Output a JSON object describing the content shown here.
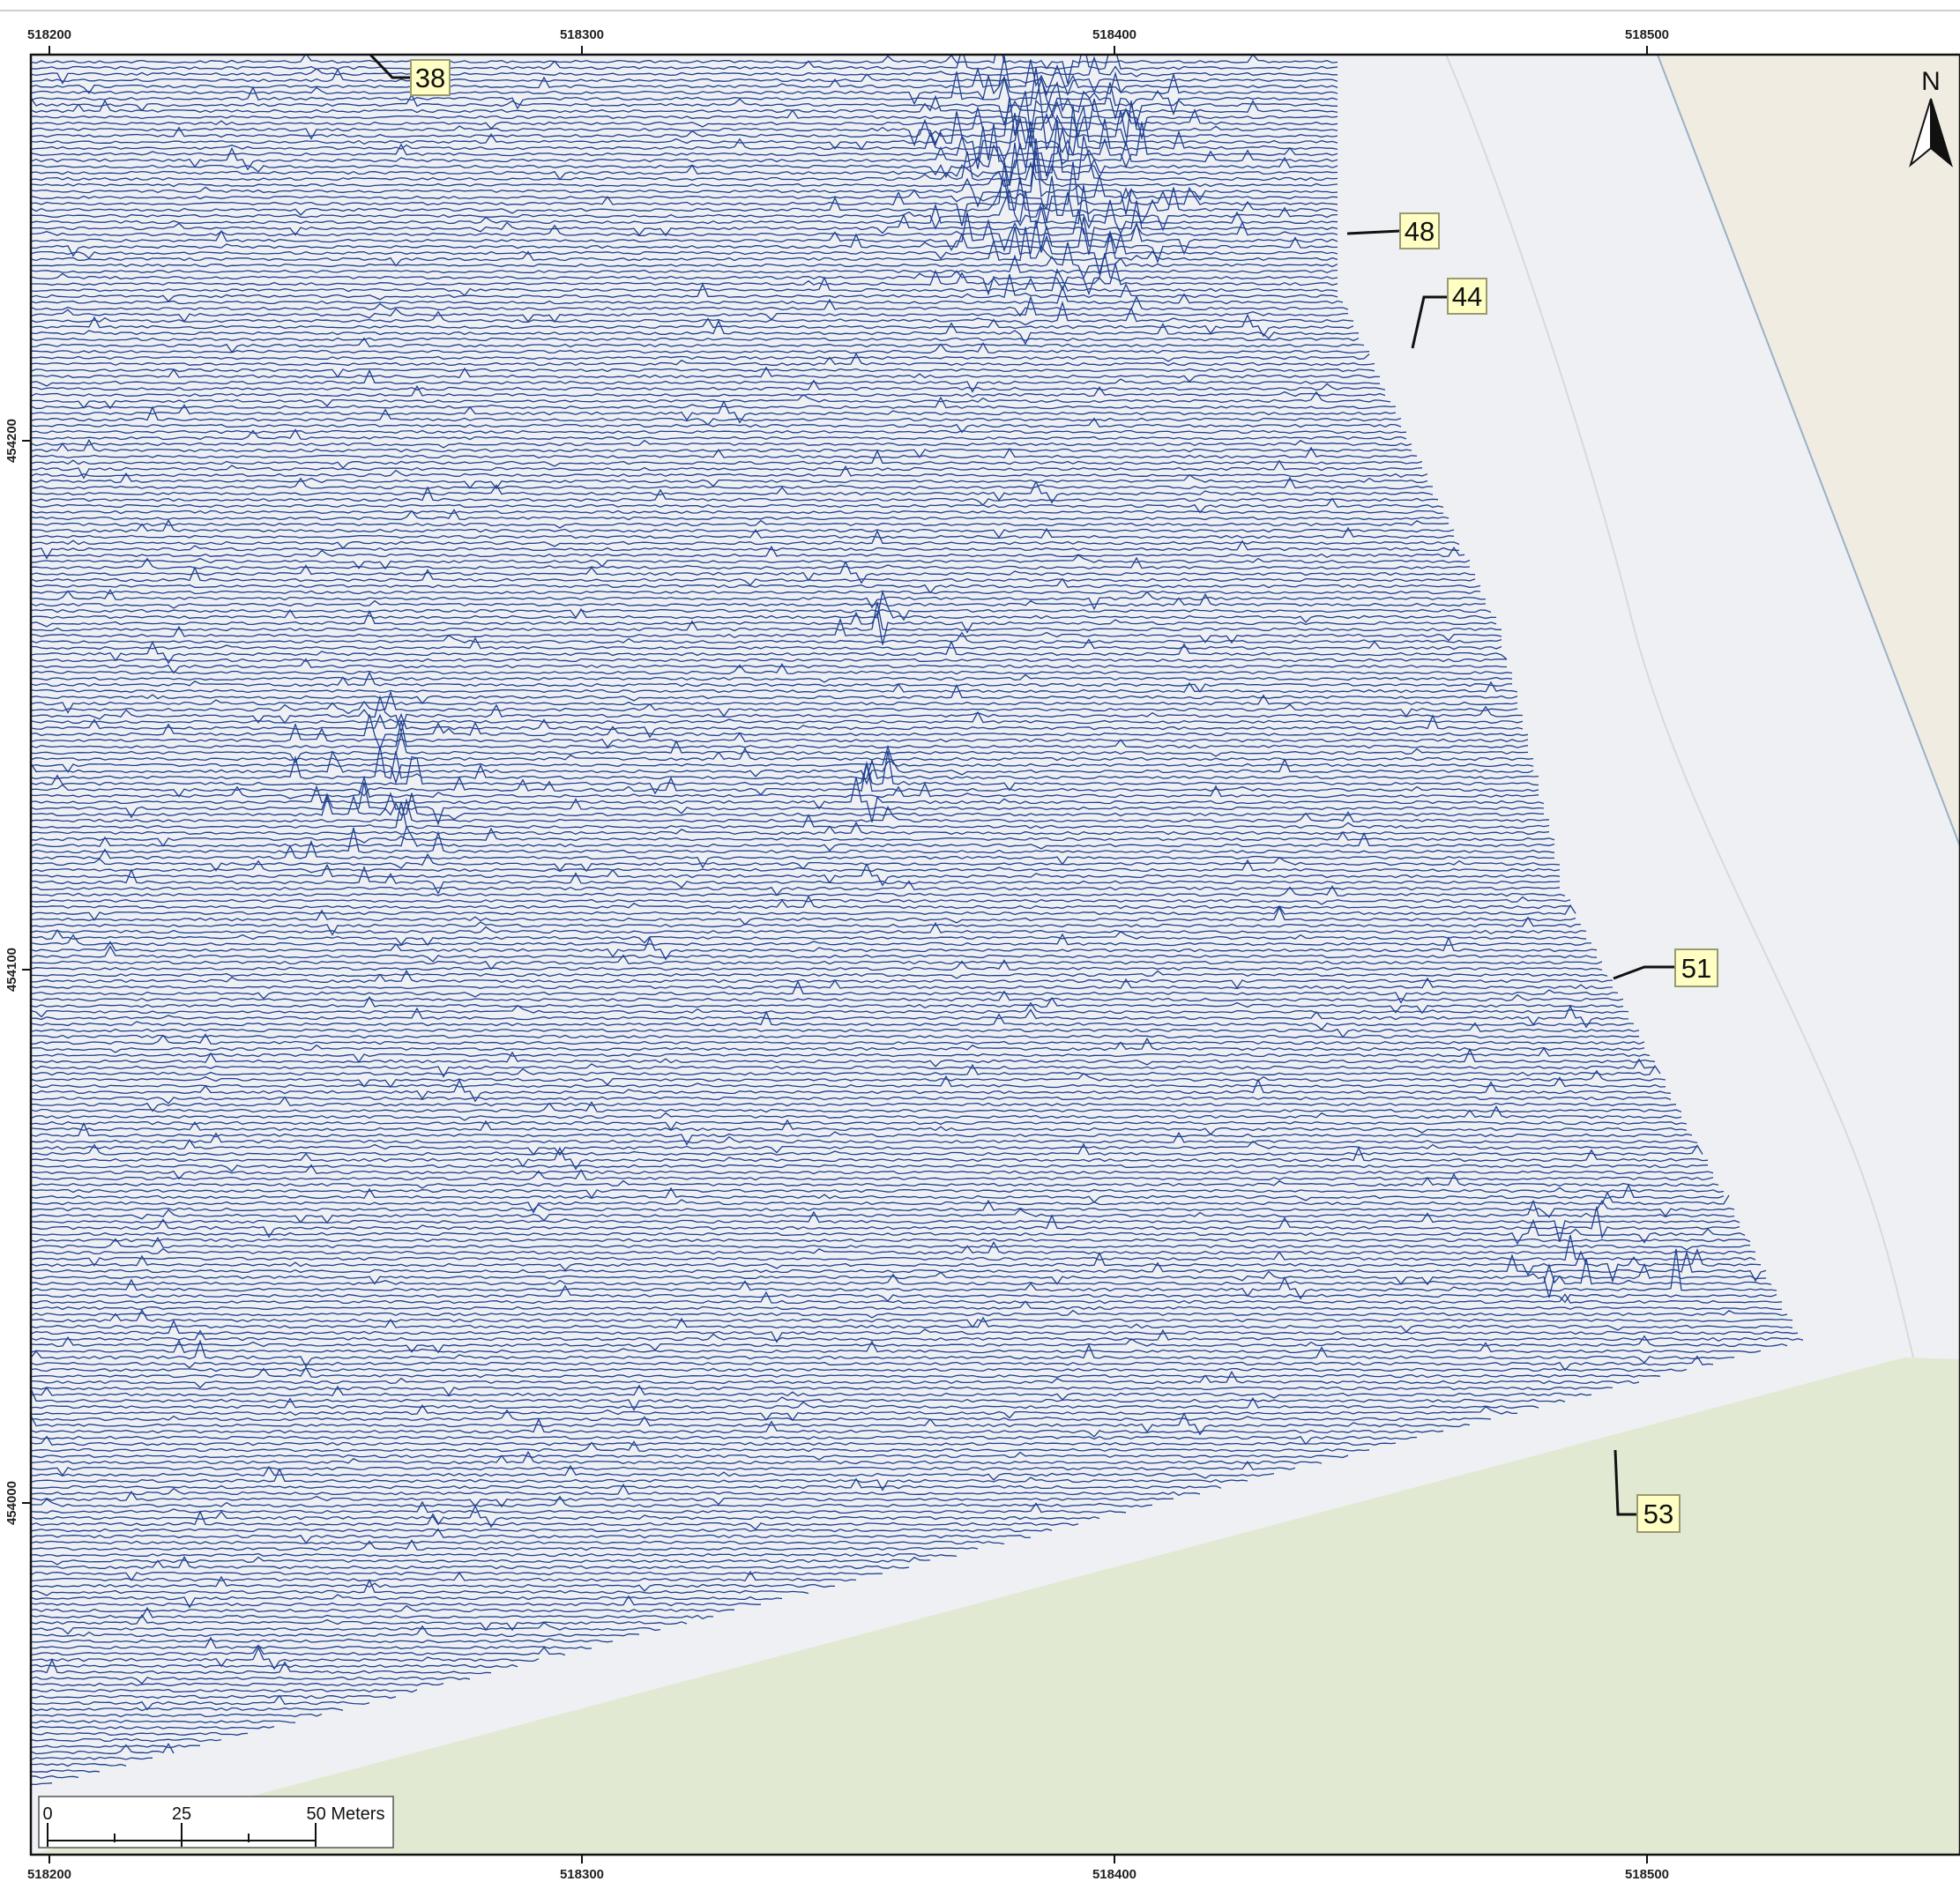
{
  "colors": {
    "trace": "#1f3f8e",
    "survey_bg": "#eef0f4",
    "road": "#f0ece1",
    "grass": "#e1e9d2",
    "label_fill": "#ffffc4",
    "label_stroke": "#9a9a70"
  },
  "grid": {
    "top_labels": [
      "518200",
      "518300",
      "518400",
      "518500"
    ],
    "bottom_labels": [
      "518200",
      "518300",
      "518400",
      "518500"
    ],
    "left_labels": [
      "454200",
      "454100",
      "454000"
    ]
  },
  "anomaly_labels": [
    {
      "id": "label-38",
      "text": "38"
    },
    {
      "id": "label-48",
      "text": "48"
    },
    {
      "id": "label-44",
      "text": "44"
    },
    {
      "id": "label-51",
      "text": "51"
    },
    {
      "id": "label-53",
      "text": "53"
    }
  ],
  "north_arrow": {
    "letter": "N",
    "icon": "north-arrow-icon"
  },
  "scale_bar": {
    "ticks": [
      "0",
      "25"
    ],
    "end_label": "50 Meters"
  }
}
